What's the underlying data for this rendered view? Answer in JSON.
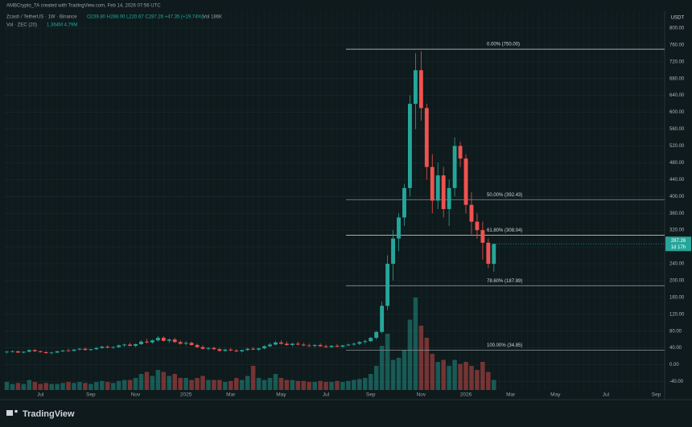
{
  "header": {
    "attribution": "AMBCrypto_TA created with TradingView.com, Feb 14, 2026 07:56 UTC",
    "symbol": "Zcash / TetherUS · 1W · Binance",
    "ohlc_text": "O239.80 H288.00 L220.67 C287.26 +47.35 (+19.74%)",
    "volume_text": "Vol 186K",
    "indicator": "Vol · ZEC (20)",
    "indicator_values": "1.364M 4.79M",
    "currency": "USDT",
    "countdown": "1d 17h",
    "brand": "TradingView"
  },
  "chart_data": {
    "type": "candlestick",
    "up_color": "#26a69a",
    "down_color": "#ef5350",
    "categories": [
      null,
      null,
      null,
      null,
      null,
      null,
      "Jul",
      null,
      null,
      null,
      null,
      null,
      null,
      null,
      null,
      "Sep",
      null,
      null,
      null,
      null,
      null,
      null,
      null,
      "Nov",
      null,
      null,
      null,
      null,
      null,
      null,
      null,
      null,
      "2025",
      null,
      null,
      null,
      null,
      null,
      null,
      null,
      "Mar",
      null,
      null,
      null,
      null,
      null,
      null,
      null,
      null,
      "May",
      null,
      null,
      null,
      null,
      null,
      null,
      null,
      "Jul",
      null,
      null,
      null,
      null,
      null,
      null,
      null,
      "Sep",
      null,
      null,
      null,
      null,
      null,
      null,
      null,
      null,
      "Nov",
      null,
      null,
      null,
      null,
      null,
      null,
      null,
      "2026",
      null,
      null,
      null,
      null,
      null,
      null,
      null,
      "Mar",
      null,
      null,
      null,
      null,
      null,
      null,
      null,
      "May",
      null,
      null,
      null,
      null,
      null,
      null,
      null,
      null,
      "Jul",
      null,
      null,
      null,
      null,
      null,
      null,
      null,
      null,
      "Sep",
      null
    ],
    "open": [
      30,
      31,
      32,
      29,
      31,
      35,
      32,
      30,
      28,
      29,
      32,
      34,
      33,
      36,
      38,
      35,
      37,
      40,
      43,
      41,
      42,
      46,
      48,
      45,
      49,
      55,
      53,
      58,
      64,
      57,
      60,
      54,
      50,
      52,
      47,
      42,
      38,
      40,
      37,
      33,
      36,
      34,
      32,
      35,
      38,
      36,
      39,
      44,
      48,
      53,
      50,
      47,
      50,
      48,
      46,
      45,
      47,
      44,
      42,
      45,
      43,
      46,
      48,
      50,
      54,
      56,
      64,
      78,
      140,
      240,
      300,
      350,
      420,
      620,
      700,
      610,
      470,
      390,
      450,
      370,
      420,
      520,
      490,
      380,
      340,
      320,
      290,
      239.8,
      null,
      null,
      null,
      null,
      null,
      null,
      null,
      null,
      null,
      null,
      null,
      null,
      null,
      null,
      null,
      null,
      null,
      null,
      null,
      null,
      null,
      null,
      null,
      null,
      null,
      null,
      null,
      null,
      null,
      null
    ],
    "high": [
      33,
      34,
      33,
      32,
      36,
      37,
      34,
      32,
      31,
      33,
      35,
      38,
      37,
      40,
      41,
      38,
      42,
      45,
      46,
      44,
      48,
      50,
      52,
      50,
      58,
      62,
      60,
      68,
      68,
      62,
      64,
      58,
      56,
      55,
      50,
      46,
      42,
      43,
      40,
      38,
      40,
      37,
      36,
      40,
      42,
      40,
      46,
      52,
      56,
      58,
      55,
      52,
      55,
      52,
      50,
      49,
      51,
      48,
      47,
      49,
      47,
      50,
      53,
      56,
      60,
      66,
      80,
      150,
      260,
      320,
      360,
      430,
      640,
      740,
      745,
      620,
      500,
      480,
      470,
      440,
      540,
      530,
      500,
      410,
      360,
      340,
      300,
      288,
      null,
      null,
      null,
      null,
      null,
      null,
      null,
      null,
      null,
      null,
      null,
      null,
      null,
      null,
      null,
      null,
      null,
      null,
      null,
      null,
      null,
      null,
      null,
      null,
      null,
      null,
      null,
      null,
      null,
      null
    ],
    "low": [
      27,
      29,
      28,
      27,
      30,
      31,
      29,
      26,
      25,
      28,
      30,
      31,
      32,
      34,
      34,
      33,
      35,
      38,
      39,
      38,
      40,
      43,
      44,
      42,
      47,
      50,
      50,
      55,
      55,
      52,
      52,
      48,
      46,
      45,
      40,
      36,
      34,
      35,
      31,
      31,
      32,
      30,
      29,
      33,
      35,
      33,
      37,
      42,
      46,
      48,
      45,
      44,
      46,
      44,
      42,
      41,
      43,
      40,
      40,
      42,
      40,
      44,
      45,
      47,
      50,
      54,
      60,
      75,
      130,
      200,
      270,
      330,
      400,
      560,
      580,
      440,
      360,
      370,
      350,
      330,
      400,
      470,
      360,
      310,
      300,
      250,
      230,
      220.67,
      null,
      null,
      null,
      null,
      null,
      null,
      null,
      null,
      null,
      null,
      null,
      null,
      null,
      null,
      null,
      null,
      null,
      null,
      null,
      null,
      null,
      null,
      null,
      null,
      null,
      null,
      null,
      null,
      null,
      null
    ],
    "close": [
      31,
      32,
      29,
      31,
      35,
      32,
      30,
      28,
      29,
      32,
      34,
      33,
      36,
      38,
      35,
      37,
      40,
      43,
      41,
      42,
      46,
      48,
      45,
      49,
      55,
      53,
      58,
      64,
      57,
      60,
      54,
      50,
      52,
      47,
      42,
      38,
      40,
      37,
      33,
      36,
      34,
      32,
      35,
      38,
      36,
      39,
      44,
      48,
      53,
      50,
      47,
      50,
      48,
      46,
      45,
      47,
      44,
      42,
      45,
      43,
      46,
      48,
      50,
      54,
      56,
      64,
      78,
      140,
      240,
      300,
      350,
      420,
      620,
      700,
      610,
      470,
      390,
      450,
      370,
      420,
      520,
      490,
      380,
      340,
      320,
      290,
      240,
      287.26,
      null,
      null,
      null,
      null,
      null,
      null,
      null,
      null,
      null,
      null,
      null,
      null,
      null,
      null,
      null,
      null,
      null,
      null,
      null,
      null,
      null,
      null,
      null,
      null,
      null,
      null,
      null,
      null,
      null,
      null
    ],
    "volume": [
      0.4,
      0.3,
      0.35,
      0.3,
      0.5,
      0.4,
      0.3,
      0.35,
      0.3,
      0.3,
      0.35,
      0.4,
      0.35,
      0.4,
      0.35,
      0.3,
      0.4,
      0.45,
      0.4,
      0.35,
      0.45,
      0.5,
      0.5,
      0.6,
      0.8,
      0.9,
      0.7,
      1.0,
      0.9,
      0.7,
      0.8,
      0.6,
      0.6,
      0.5,
      0.6,
      0.7,
      0.5,
      0.5,
      0.5,
      0.4,
      0.45,
      0.6,
      0.5,
      0.7,
      1.2,
      0.6,
      0.5,
      0.6,
      0.8,
      0.6,
      0.5,
      0.5,
      0.45,
      0.45,
      0.4,
      0.4,
      0.45,
      0.4,
      0.4,
      0.45,
      0.4,
      0.45,
      0.5,
      0.55,
      0.6,
      0.8,
      1.2,
      2.2,
      2.8,
      1.5,
      1.6,
      2.0,
      3.5,
      4.6,
      3.2,
      2.6,
      1.8,
      1.4,
      1.5,
      1.2,
      1.5,
      1.3,
      1.4,
      1.2,
      1.0,
      1.4,
      0.9,
      0.5,
      null,
      null,
      null,
      null,
      null,
      null,
      null,
      null,
      null,
      null,
      null,
      null,
      null,
      null,
      null,
      null,
      null,
      null,
      null,
      null,
      null,
      null,
      null,
      null,
      null,
      null,
      null,
      null,
      null,
      null
    ],
    "ylim": [
      -60,
      840
    ],
    "yticks": [
      {
        "value": -40,
        "label": "-40.00"
      },
      {
        "value": 0,
        "label": "0.00"
      },
      {
        "value": 40,
        "label": "40.00"
      },
      {
        "value": 80,
        "label": "80.00"
      },
      {
        "value": 120,
        "label": "120.00"
      },
      {
        "value": 160,
        "label": "160.00"
      },
      {
        "value": 200,
        "label": "200.00"
      },
      {
        "value": 240,
        "label": "240.00"
      },
      {
        "value": 280,
        "label": "280.00"
      },
      {
        "value": 320,
        "label": "320.00"
      },
      {
        "value": 360,
        "label": "360.00"
      },
      {
        "value": 400,
        "label": "400.00"
      },
      {
        "value": 440,
        "label": "440.00"
      },
      {
        "value": 480,
        "label": "480.00"
      },
      {
        "value": 520,
        "label": "520.00"
      },
      {
        "value": 560,
        "label": "560.00"
      },
      {
        "value": 600,
        "label": "600.00"
      },
      {
        "value": 640,
        "label": "640.00"
      },
      {
        "value": 680,
        "label": "680.00"
      },
      {
        "value": 720,
        "label": "720.00"
      },
      {
        "value": 760,
        "label": "760.00"
      },
      {
        "value": 800,
        "label": "800.00"
      }
    ],
    "fib_levels": [
      {
        "value": 750,
        "label": "0.00% (750.00)",
        "color": "#d1d4dc"
      },
      {
        "value": 392.43,
        "label": "50.00% (392.43)",
        "color": "#8a8e97"
      },
      {
        "value": 308.04,
        "label": "61.80% (308.04)",
        "color": "#e6e3b0"
      },
      {
        "value": 187.89,
        "label": "78.60% (187.89)",
        "color": "#a3a6ae"
      },
      {
        "value": 34.85,
        "label": "100.00% (34.85)",
        "color": "#8a8e97"
      }
    ],
    "grid": true
  }
}
